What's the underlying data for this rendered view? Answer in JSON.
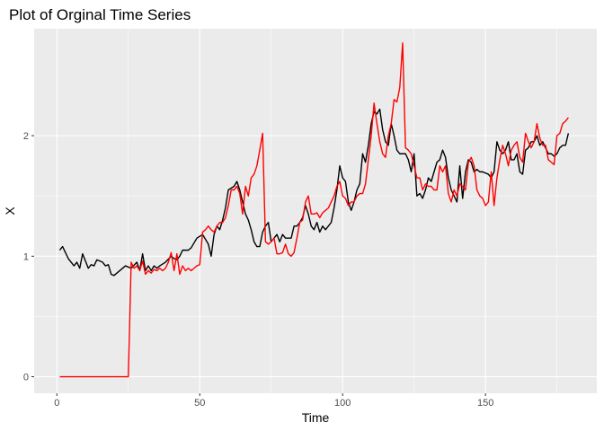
{
  "chart_data": {
    "type": "line",
    "title": "Plot of Orginal Time Series",
    "xlabel": "Time",
    "ylabel": "X",
    "xlim": [
      1,
      180
    ],
    "ylim": [
      0,
      2.75
    ],
    "x_ticks": [
      0,
      50,
      100,
      150
    ],
    "y_ticks": [
      0,
      1,
      2
    ],
    "grid": true,
    "series": [
      {
        "color": "#000000",
        "points": [
          [
            1,
            1.05
          ],
          [
            2,
            1.08
          ],
          [
            4,
            0.98
          ],
          [
            6,
            0.92
          ],
          [
            7,
            0.95
          ],
          [
            8,
            0.9
          ],
          [
            9,
            1.02
          ],
          [
            11,
            0.9
          ],
          [
            12,
            0.93
          ],
          [
            13,
            0.92
          ],
          [
            14,
            0.97
          ],
          [
            16,
            0.95
          ],
          [
            17,
            0.92
          ],
          [
            18,
            0.93
          ],
          [
            19,
            0.85
          ],
          [
            20,
            0.84
          ],
          [
            22,
            0.88
          ],
          [
            24,
            0.92
          ],
          [
            26,
            0.9
          ],
          [
            28,
            0.95
          ],
          [
            29,
            0.88
          ],
          [
            30,
            1.02
          ],
          [
            31,
            0.88
          ],
          [
            32,
            0.92
          ],
          [
            33,
            0.88
          ],
          [
            34,
            0.92
          ],
          [
            35,
            0.9
          ],
          [
            36,
            0.92
          ],
          [
            38,
            0.95
          ],
          [
            40,
            1.0
          ],
          [
            41,
            0.98
          ],
          [
            42,
            0.97
          ],
          [
            43,
            1.0
          ],
          [
            44,
            1.05
          ],
          [
            46,
            1.05
          ],
          [
            47,
            1.07
          ],
          [
            49,
            1.15
          ],
          [
            51,
            1.18
          ],
          [
            53,
            1.1
          ],
          [
            54,
            1.0
          ],
          [
            55,
            1.18
          ],
          [
            56,
            1.25
          ],
          [
            57,
            1.22
          ],
          [
            58,
            1.3
          ],
          [
            59,
            1.4
          ],
          [
            60,
            1.55
          ],
          [
            62,
            1.58
          ],
          [
            63,
            1.62
          ],
          [
            64,
            1.55
          ],
          [
            65,
            1.45
          ],
          [
            66,
            1.35
          ],
          [
            67,
            1.3
          ],
          [
            68,
            1.22
          ],
          [
            69,
            1.12
          ],
          [
            70,
            1.08
          ],
          [
            71,
            1.08
          ],
          [
            72,
            1.2
          ],
          [
            73,
            1.25
          ],
          [
            74,
            1.28
          ],
          [
            75,
            1.12
          ],
          [
            76,
            1.15
          ],
          [
            77,
            1.18
          ],
          [
            78,
            1.12
          ],
          [
            79,
            1.18
          ],
          [
            80,
            1.15
          ],
          [
            82,
            1.15
          ],
          [
            83,
            1.25
          ],
          [
            84,
            1.25
          ],
          [
            85,
            1.28
          ],
          [
            86,
            1.32
          ],
          [
            87,
            1.42
          ],
          [
            88,
            1.35
          ],
          [
            89,
            1.25
          ],
          [
            90,
            1.22
          ],
          [
            91,
            1.28
          ],
          [
            92,
            1.2
          ],
          [
            93,
            1.25
          ],
          [
            94,
            1.22
          ],
          [
            95,
            1.25
          ],
          [
            96,
            1.28
          ],
          [
            97,
            1.4
          ],
          [
            98,
            1.55
          ],
          [
            99,
            1.75
          ],
          [
            100,
            1.65
          ],
          [
            101,
            1.62
          ],
          [
            102,
            1.45
          ],
          [
            103,
            1.38
          ],
          [
            104,
            1.45
          ],
          [
            105,
            1.55
          ],
          [
            106,
            1.6
          ],
          [
            107,
            1.85
          ],
          [
            108,
            1.78
          ],
          [
            109,
            1.92
          ],
          [
            110,
            2.1
          ],
          [
            111,
            2.2
          ],
          [
            112,
            2.18
          ],
          [
            113,
            2.22
          ],
          [
            114,
            2.05
          ],
          [
            115,
            1.95
          ],
          [
            116,
            1.92
          ],
          [
            117,
            2.1
          ],
          [
            118,
            2.0
          ],
          [
            119,
            1.88
          ],
          [
            120,
            1.85
          ],
          [
            122,
            1.85
          ],
          [
            123,
            1.8
          ],
          [
            124,
            1.7
          ],
          [
            125,
            1.85
          ],
          [
            126,
            1.5
          ],
          [
            127,
            1.52
          ],
          [
            128,
            1.48
          ],
          [
            129,
            1.55
          ],
          [
            130,
            1.65
          ],
          [
            131,
            1.62
          ],
          [
            132,
            1.7
          ],
          [
            133,
            1.78
          ],
          [
            134,
            1.8
          ],
          [
            135,
            1.88
          ],
          [
            136,
            1.82
          ],
          [
            137,
            1.65
          ],
          [
            138,
            1.55
          ],
          [
            139,
            1.5
          ],
          [
            140,
            1.45
          ],
          [
            141,
            1.75
          ],
          [
            142,
            1.48
          ],
          [
            143,
            1.7
          ],
          [
            144,
            1.8
          ],
          [
            145,
            1.78
          ],
          [
            146,
            1.7
          ],
          [
            147,
            1.72
          ],
          [
            148,
            1.7
          ],
          [
            149,
            1.7
          ],
          [
            151,
            1.68
          ],
          [
            152,
            1.65
          ],
          [
            153,
            1.7
          ],
          [
            154,
            1.95
          ],
          [
            155,
            1.88
          ],
          [
            156,
            1.85
          ],
          [
            157,
            1.88
          ],
          [
            158,
            1.95
          ],
          [
            159,
            1.8
          ],
          [
            160,
            1.8
          ],
          [
            161,
            1.85
          ],
          [
            162,
            1.7
          ],
          [
            163,
            1.68
          ],
          [
            164,
            1.88
          ],
          [
            165,
            1.9
          ],
          [
            166,
            1.95
          ],
          [
            167,
            1.95
          ],
          [
            168,
            2.0
          ],
          [
            169,
            1.92
          ],
          [
            170,
            1.95
          ],
          [
            171,
            1.9
          ],
          [
            172,
            1.85
          ],
          [
            173,
            1.85
          ],
          [
            174,
            1.83
          ],
          [
            175,
            1.85
          ],
          [
            176,
            1.9
          ],
          [
            177,
            1.92
          ],
          [
            178,
            1.92
          ],
          [
            179,
            2.02
          ]
        ]
      },
      {
        "color": "#ff0000",
        "points": [
          [
            1,
            0
          ],
          [
            24,
            0
          ],
          [
            25,
            0
          ],
          [
            26,
            0.95
          ],
          [
            27,
            0.9
          ],
          [
            28,
            0.92
          ],
          [
            29,
            0.88
          ],
          [
            30,
            0.96
          ],
          [
            31,
            0.85
          ],
          [
            32,
            0.88
          ],
          [
            33,
            0.86
          ],
          [
            34,
            0.89
          ],
          [
            35,
            0.88
          ],
          [
            36,
            0.9
          ],
          [
            37,
            0.88
          ],
          [
            38,
            0.9
          ],
          [
            39,
            0.95
          ],
          [
            40,
            1.03
          ],
          [
            41,
            0.88
          ],
          [
            42,
            1.02
          ],
          [
            43,
            0.85
          ],
          [
            44,
            0.92
          ],
          [
            45,
            0.88
          ],
          [
            46,
            0.9
          ],
          [
            47,
            0.88
          ],
          [
            48,
            0.9
          ],
          [
            49,
            0.92
          ],
          [
            50,
            0.93
          ],
          [
            51,
            1.2
          ],
          [
            52,
            1.22
          ],
          [
            53,
            1.25
          ],
          [
            54,
            1.22
          ],
          [
            55,
            1.2
          ],
          [
            56,
            1.25
          ],
          [
            57,
            1.28
          ],
          [
            58,
            1.28
          ],
          [
            59,
            1.32
          ],
          [
            60,
            1.42
          ],
          [
            61,
            1.55
          ],
          [
            62,
            1.55
          ],
          [
            63,
            1.58
          ],
          [
            64,
            1.52
          ],
          [
            65,
            1.35
          ],
          [
            66,
            1.58
          ],
          [
            67,
            1.5
          ],
          [
            68,
            1.65
          ],
          [
            69,
            1.68
          ],
          [
            70,
            1.75
          ],
          [
            71,
            1.88
          ],
          [
            72,
            2.02
          ],
          [
            73,
            1.12
          ],
          [
            74,
            1.1
          ],
          [
            75,
            1.12
          ],
          [
            76,
            1.15
          ],
          [
            77,
            1.02
          ],
          [
            78,
            1.02
          ],
          [
            79,
            1.03
          ],
          [
            80,
            1.1
          ],
          [
            81,
            1.02
          ],
          [
            82,
            1.0
          ],
          [
            83,
            1.03
          ],
          [
            84,
            1.15
          ],
          [
            85,
            1.28
          ],
          [
            86,
            1.3
          ],
          [
            87,
            1.45
          ],
          [
            88,
            1.5
          ],
          [
            89,
            1.35
          ],
          [
            90,
            1.35
          ],
          [
            91,
            1.36
          ],
          [
            92,
            1.32
          ],
          [
            93,
            1.36
          ],
          [
            94,
            1.38
          ],
          [
            95,
            1.4
          ],
          [
            96,
            1.45
          ],
          [
            97,
            1.5
          ],
          [
            98,
            1.58
          ],
          [
            99,
            1.62
          ],
          [
            100,
            1.5
          ],
          [
            101,
            1.48
          ],
          [
            102,
            1.42
          ],
          [
            103,
            1.45
          ],
          [
            104,
            1.45
          ],
          [
            105,
            1.5
          ],
          [
            106,
            1.52
          ],
          [
            107,
            1.52
          ],
          [
            108,
            1.6
          ],
          [
            109,
            1.8
          ],
          [
            110,
            2.0
          ],
          [
            111,
            2.27
          ],
          [
            112,
            2.1
          ],
          [
            113,
            1.95
          ],
          [
            114,
            1.85
          ],
          [
            115,
            1.82
          ],
          [
            116,
            2.0
          ],
          [
            117,
            2.1
          ],
          [
            118,
            2.3
          ],
          [
            119,
            2.28
          ],
          [
            120,
            2.4
          ],
          [
            121,
            2.77
          ],
          [
            122,
            1.9
          ],
          [
            123,
            1.88
          ],
          [
            124,
            1.85
          ],
          [
            125,
            1.75
          ],
          [
            126,
            1.65
          ],
          [
            127,
            1.65
          ],
          [
            128,
            1.55
          ],
          [
            129,
            1.6
          ],
          [
            130,
            1.58
          ],
          [
            131,
            1.58
          ],
          [
            132,
            1.55
          ],
          [
            133,
            1.55
          ],
          [
            134,
            1.75
          ],
          [
            135,
            1.7
          ],
          [
            136,
            1.75
          ],
          [
            137,
            1.52
          ],
          [
            138,
            1.45
          ],
          [
            139,
            1.55
          ],
          [
            140,
            1.5
          ],
          [
            141,
            1.6
          ],
          [
            142,
            1.58
          ],
          [
            143,
            1.55
          ],
          [
            144,
            1.78
          ],
          [
            145,
            1.82
          ],
          [
            146,
            1.75
          ],
          [
            147,
            1.55
          ],
          [
            148,
            1.5
          ],
          [
            149,
            1.48
          ],
          [
            150,
            1.42
          ],
          [
            151,
            1.45
          ],
          [
            152,
            1.7
          ],
          [
            153,
            1.42
          ],
          [
            154,
            1.65
          ],
          [
            155,
            1.8
          ],
          [
            156,
            1.92
          ],
          [
            157,
            1.85
          ],
          [
            158,
            1.75
          ],
          [
            159,
            1.88
          ],
          [
            160,
            1.92
          ],
          [
            161,
            1.95
          ],
          [
            162,
            1.82
          ],
          [
            163,
            1.78
          ],
          [
            164,
            2.02
          ],
          [
            165,
            1.95
          ],
          [
            166,
            1.9
          ],
          [
            167,
            1.95
          ],
          [
            168,
            2.1
          ],
          [
            169,
            1.98
          ],
          [
            170,
            1.92
          ],
          [
            171,
            1.92
          ],
          [
            172,
            1.8
          ],
          [
            173,
            1.78
          ],
          [
            174,
            1.76
          ],
          [
            175,
            2.0
          ],
          [
            176,
            2.02
          ],
          [
            177,
            2.1
          ],
          [
            178,
            2.12
          ],
          [
            179,
            2.15
          ]
        ]
      }
    ]
  }
}
